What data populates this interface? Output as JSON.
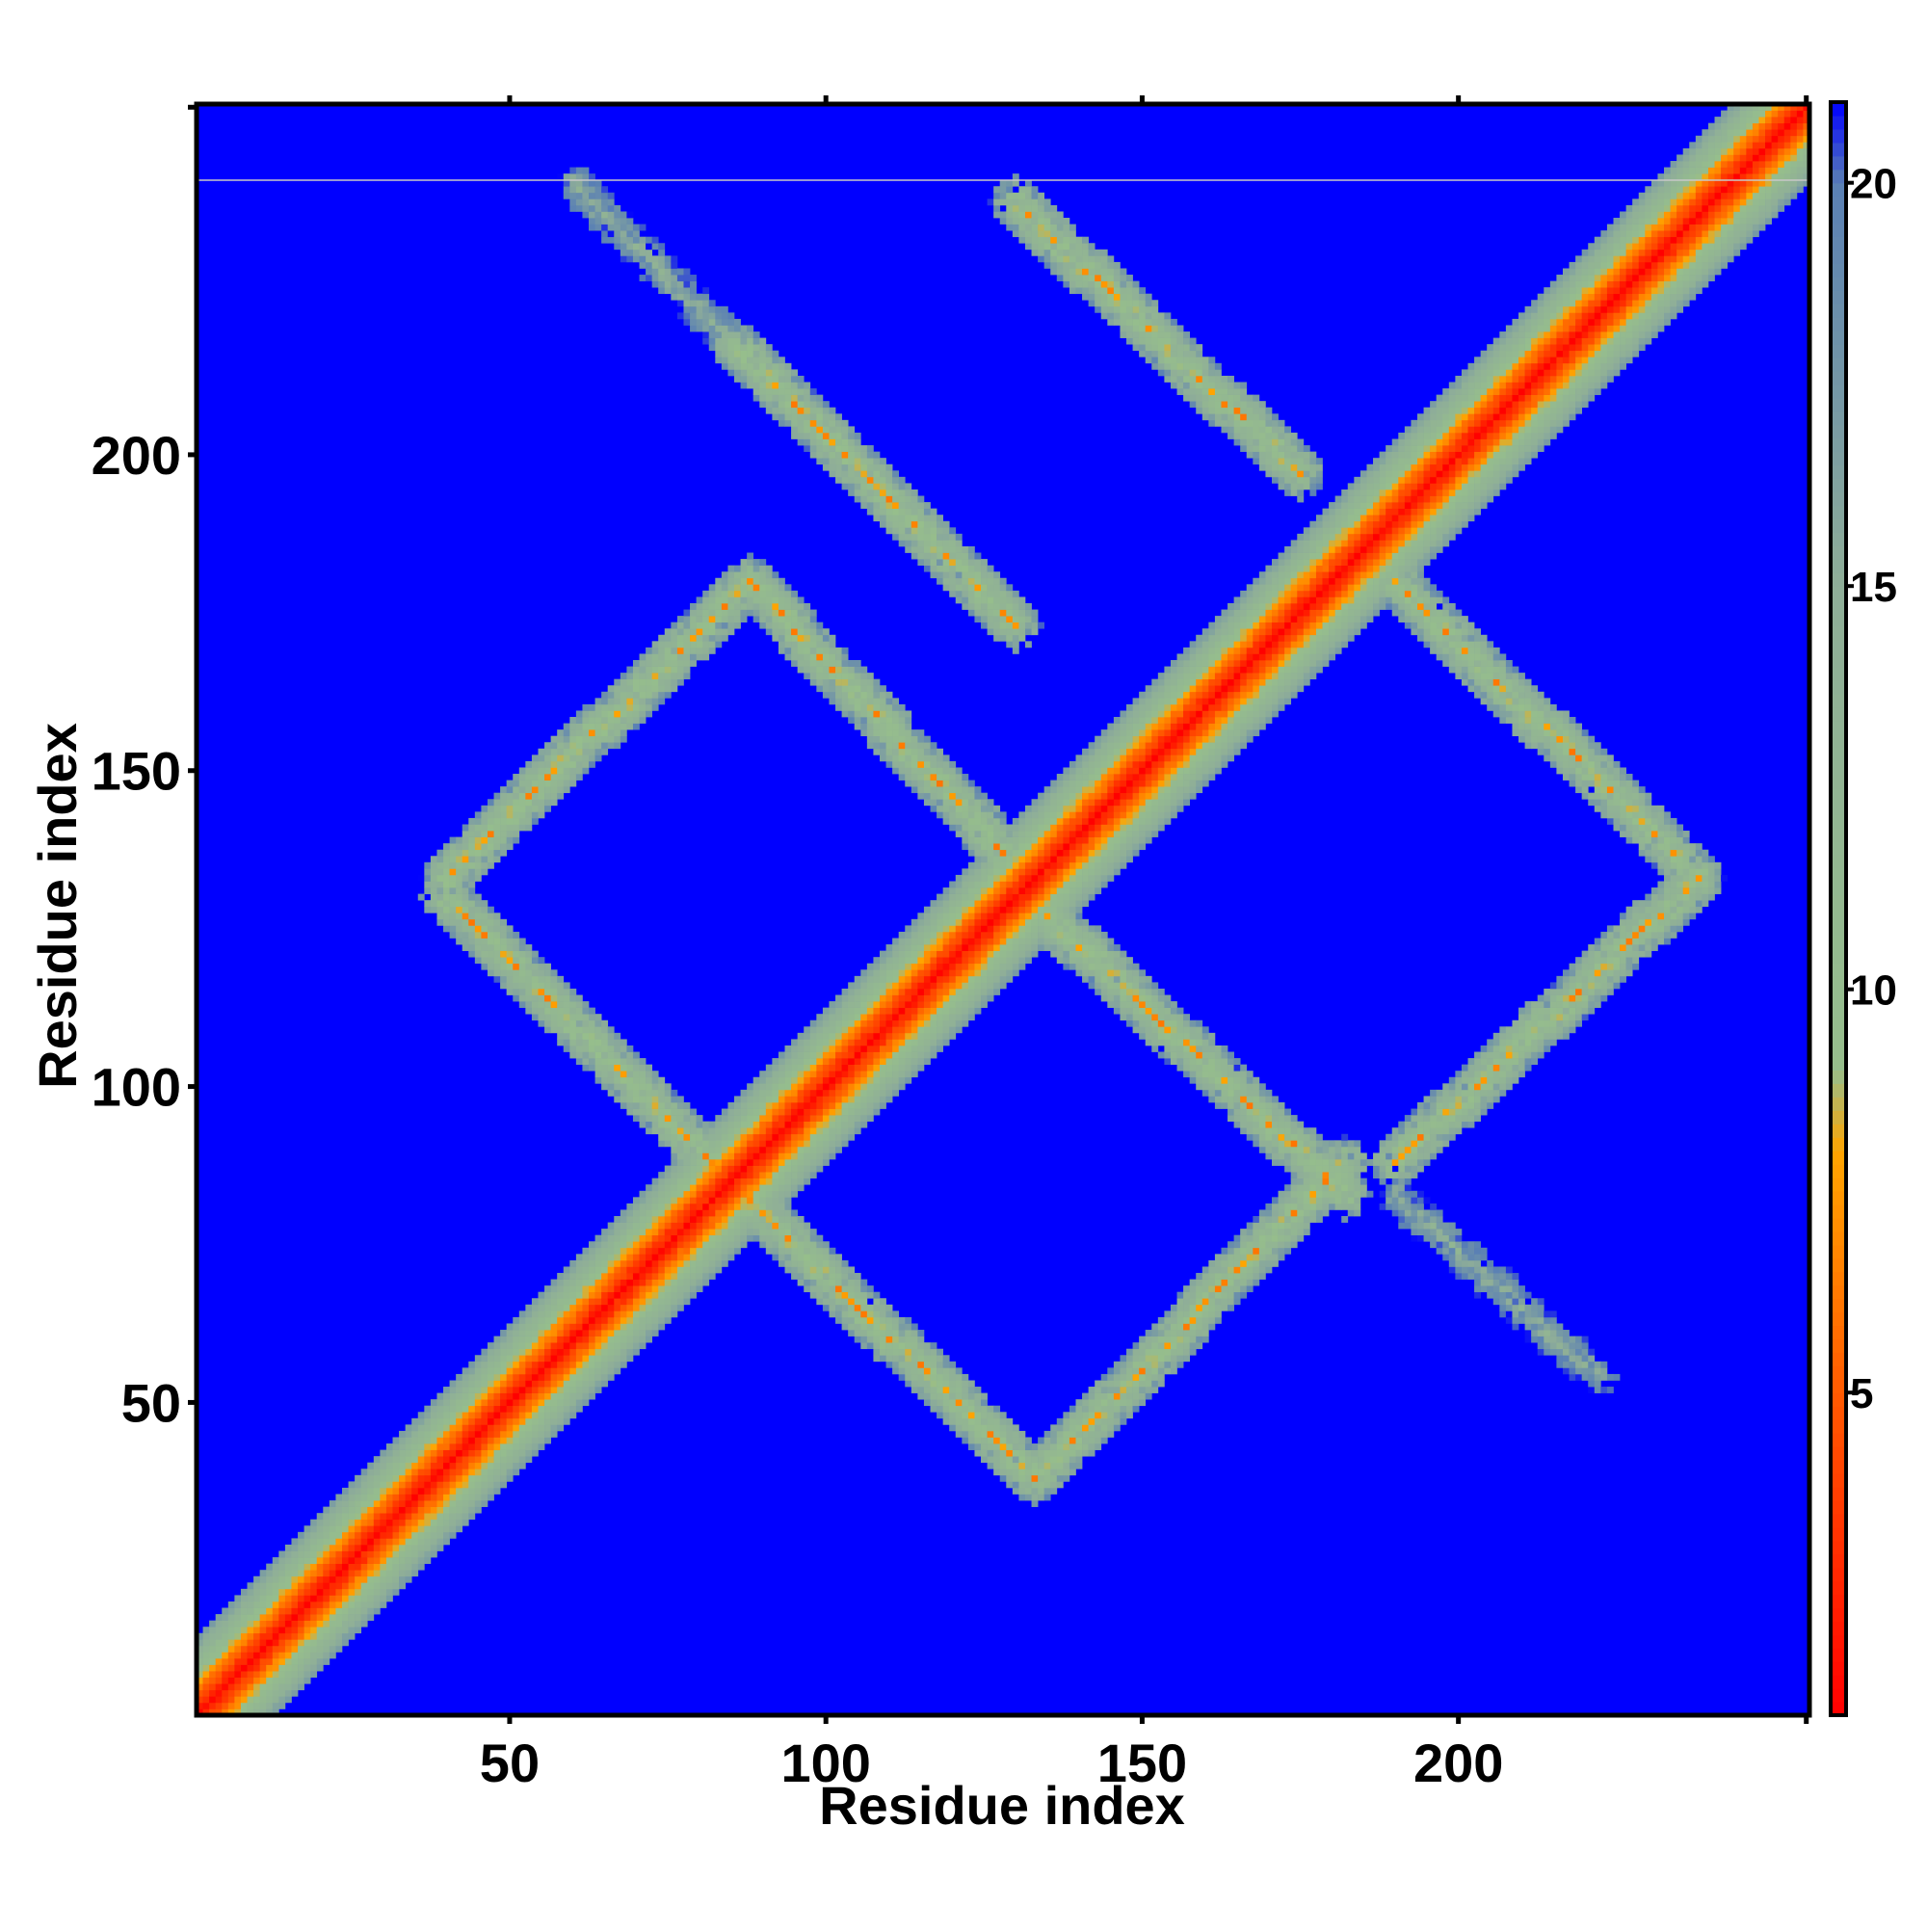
{
  "chart_data": {
    "type": "heatmap",
    "title": "",
    "xlabel": "Residue index",
    "ylabel": "Residue index",
    "xlim": [
      1,
      255
    ],
    "ylim": [
      1,
      255
    ],
    "x_ticks": [
      50,
      100,
      150,
      200
    ],
    "y_ticks": [
      50,
      100,
      150,
      200
    ],
    "colorbar": {
      "ticks": [
        5,
        10,
        15,
        20
      ],
      "range": [
        1,
        21
      ],
      "scale": [
        {
          "value": 1,
          "color": "#ff0000"
        },
        {
          "value": 5,
          "color": "#ff5a00"
        },
        {
          "value": 8,
          "color": "#ffa500"
        },
        {
          "value": 9,
          "color": "#96be8c"
        },
        {
          "value": 15,
          "color": "#8fae98"
        },
        {
          "value": 20,
          "color": "#5a80b4"
        },
        {
          "value": 21,
          "color": "#0000ff"
        }
      ],
      "background_color": "#0000ff"
    },
    "contact_bands": [
      {
        "i_start": 1,
        "i_end": 255,
        "j_start": 1,
        "j_end": 255,
        "min_value": 1
      },
      {
        "i_start": 60,
        "i_end": 86,
        "j_start": 243,
        "j_end": 217,
        "min_value": 12
      },
      {
        "i_start": 86,
        "i_end": 130,
        "j_start": 217,
        "j_end": 173,
        "min_value": 6
      },
      {
        "i_start": 40,
        "i_end": 88,
        "j_start": 130,
        "j_end": 82,
        "min_value": 6
      },
      {
        "i_start": 88,
        "i_end": 133,
        "j_start": 82,
        "j_end": 38,
        "min_value": 6
      },
      {
        "i_start": 133,
        "i_end": 182,
        "j_start": 38,
        "j_end": 88,
        "min_value": 6
      },
      {
        "i_start": 132,
        "i_end": 182,
        "j_start": 130,
        "j_end": 83,
        "min_value": 6
      },
      {
        "i_start": 190,
        "i_end": 238,
        "j_start": 88,
        "j_end": 133,
        "min_value": 6
      },
      {
        "i_start": 40,
        "i_end": 88,
        "j_start": 133,
        "j_end": 180,
        "min_value": 6
      },
      {
        "i_start": 88,
        "i_end": 132,
        "j_start": 180,
        "j_end": 133,
        "min_value": 6
      },
      {
        "i_start": 190,
        "i_end": 238,
        "j_start": 180,
        "j_end": 133,
        "min_value": 6
      },
      {
        "i_start": 130,
        "i_end": 175,
        "j_start": 240,
        "j_end": 197,
        "min_value": 6
      },
      {
        "i_start": 190,
        "i_end": 222,
        "j_start": 83,
        "j_end": 54,
        "min_value": 12
      }
    ]
  }
}
